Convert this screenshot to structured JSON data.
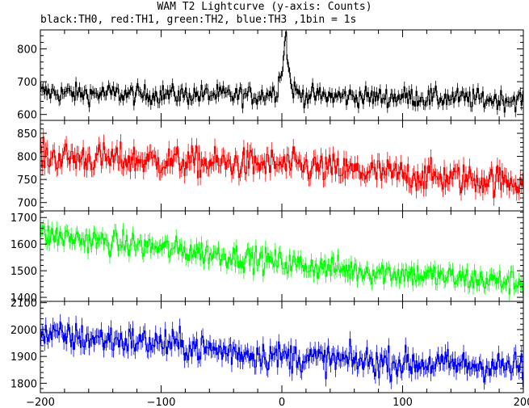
{
  "title": "WAM T2 Lightcurve (y-axis: Counts)",
  "subtitle": "black:TH0, red:TH1, green:TH2, blue:TH3 ,1bin = 1s",
  "chart_data": {
    "type": "line",
    "x_range": [
      -200,
      200
    ],
    "x_ticks": [
      -200,
      -100,
      0,
      100,
      200
    ],
    "bin_seconds": 1,
    "panels": [
      {
        "name": "TH0",
        "color": "#000000",
        "ylim": [
          582,
          858
        ],
        "y_ticks": [
          600,
          700,
          800
        ],
        "x": [
          -200,
          -180,
          -160,
          -140,
          -120,
          -100,
          -80,
          -60,
          -40,
          -20,
          -5,
          0,
          3,
          5,
          8,
          15,
          40,
          60,
          80,
          100,
          120,
          140,
          160,
          180,
          200
        ],
        "values": [
          668,
          665,
          663,
          664,
          660,
          662,
          660,
          661,
          658,
          657,
          670,
          750,
          848,
          735,
          680,
          660,
          655,
          655,
          652,
          655,
          650,
          650,
          648,
          645,
          645
        ],
        "noise": 22
      },
      {
        "name": "TH1",
        "color": "#ff0000",
        "ylim": [
          682,
          878
        ],
        "y_ticks": [
          700,
          750,
          800,
          850
        ],
        "x": [
          -200,
          -150,
          -100,
          -50,
          0,
          50,
          100,
          150,
          200
        ],
        "values": [
          800,
          795,
          790,
          785,
          782,
          770,
          760,
          752,
          745
        ],
        "noise": 24
      },
      {
        "name": "TH2",
        "color": "#00ff00",
        "ylim": [
          1385,
          1725
        ],
        "y_ticks": [
          1400,
          1500,
          1600,
          1700
        ],
        "x": [
          -200,
          -150,
          -100,
          -50,
          0,
          50,
          100,
          150,
          200
        ],
        "values": [
          1635,
          1610,
          1585,
          1560,
          1530,
          1505,
          1490,
          1470,
          1455
        ],
        "noise": 34
      },
      {
        "name": "TH3",
        "color": "#0000ff",
        "ylim": [
          1765,
          2105
        ],
        "y_ticks": [
          1800,
          1900,
          2000,
          2100
        ],
        "x": [
          -200,
          -150,
          -100,
          -50,
          0,
          50,
          100,
          150,
          200
        ],
        "values": [
          1980,
          1965,
          1950,
          1920,
          1900,
          1885,
          1875,
          1868,
          1860
        ],
        "noise": 40
      }
    ]
  }
}
